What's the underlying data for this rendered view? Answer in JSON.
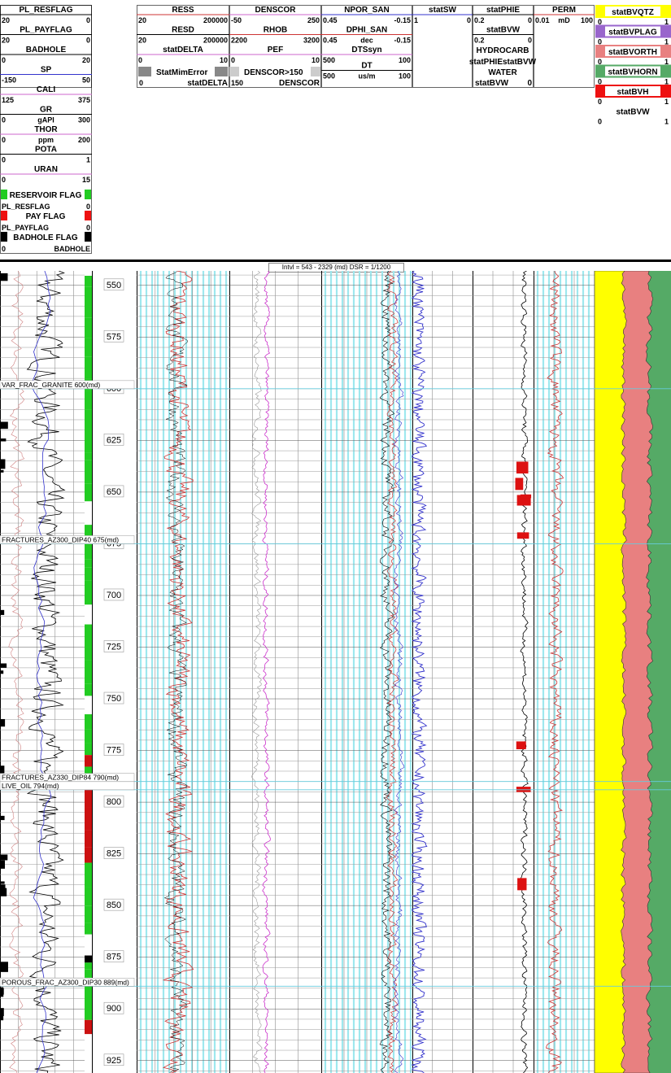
{
  "interval_label": "Intvl = 543 - 2329 (md) DSR = 1/1200",
  "header": {
    "left": [
      {
        "name": "PL_RESFLAG",
        "min": "20",
        "max": "0",
        "color": "#000"
      },
      {
        "name": "PL_PAYFLAG",
        "min": "20",
        "max": "0",
        "color": "#000"
      },
      {
        "name": "BADHOLE",
        "min": "0",
        "max": "20",
        "color": "#000"
      },
      {
        "name": "SP",
        "min": "-150",
        "max": "50",
        "color": "#3333cc"
      },
      {
        "name": "CALI",
        "min": "125",
        "max": "375",
        "color": "#cc66cc"
      },
      {
        "name": "GR",
        "unit": "gAPI",
        "min": "0",
        "max": "300",
        "color": "#000"
      },
      {
        "name": "THOR",
        "unit": "ppm",
        "min": "0",
        "max": "200",
        "color": "#cc66cc"
      },
      {
        "name": "POTA",
        "min": "0",
        "max": "1",
        "color": "#000"
      },
      {
        "name": "URAN",
        "min": "0",
        "max": "15",
        "color": "#cc66cc"
      }
    ],
    "flags": [
      {
        "title": "RESERVOIR FLAG",
        "name": "PL_RESFLAG",
        "max": "0",
        "color": "#22cc22"
      },
      {
        "title": "PAY FLAG",
        "name": "PL_PAYFLAG",
        "max": "0",
        "color": "#ee1111"
      },
      {
        "title": "BADHOLE FLAG",
        "name": "BADHOLE",
        "min": "0",
        "color": "#000"
      }
    ],
    "ress_col": [
      {
        "name": "RESS",
        "min": "20",
        "max": "200000",
        "color": "#cc3333"
      },
      {
        "name": "RESD",
        "min": "20",
        "max": "200000",
        "color": "#000"
      },
      {
        "name": "statDELTA",
        "min": "0",
        "max": "10",
        "color": "#cc66cc"
      }
    ],
    "dens_col": [
      {
        "name": "DENSCOR",
        "min": "-50",
        "max": "250",
        "color": "#cc66cc"
      },
      {
        "name": "RHOB",
        "min": "2200",
        "max": "3200",
        "color": "#cc3333"
      },
      {
        "name": "PEF",
        "min": "0",
        "max": "10",
        "color": "#cc66cc"
      }
    ],
    "npor_col": [
      {
        "name": "NPOR_SAN",
        "min": "0.45",
        "max": "-0.15",
        "color": "#3333cc"
      },
      {
        "name": "DPHI_SAN",
        "unit": "dec",
        "min": "0.45",
        "max": "-0.15",
        "color": "#cc3333"
      },
      {
        "name": "DTSsyn",
        "min": "500",
        "max": "100",
        "color": "#cc66cc"
      },
      {
        "name": "DT",
        "unit": "us/m",
        "min": "500",
        "max": "100",
        "color": "#000"
      }
    ],
    "shade_legend": {
      "a": "StatMimError",
      "b": "DENSCOR>150",
      "c": "statDELTA",
      "d": "DENSCOR",
      "min_a": "0",
      "min_b": "150"
    },
    "sw_col": {
      "name": "statSW",
      "min": "1",
      "max": "0",
      "color": "#3333cc"
    },
    "phie_col": [
      {
        "name": "statPHIE",
        "min": "0.2",
        "max": "0",
        "color": "#000"
      },
      {
        "name": "statBVW",
        "min": "0.2",
        "max": "0",
        "color": "#000"
      }
    ],
    "phie_extra": {
      "hydro": "HYDROCARB",
      "hydro_sub": "statPHIEstatBVW",
      "water": "WATER",
      "water_sub": "statBVW",
      "water_val": "0"
    },
    "perm_col": {
      "name": "PERM",
      "min": "0.01",
      "unit": "mD",
      "max": "100",
      "color": "#cc3333"
    },
    "mineral": [
      {
        "name": "statBVQTZ",
        "min": "0",
        "max": "1",
        "color": "#ffff00"
      },
      {
        "name": "statBVPLAG",
        "min": "0",
        "max": "1",
        "color": "#9966cc"
      },
      {
        "name": "statBVORTH",
        "min": "0",
        "max": "1",
        "color": "#e88080"
      },
      {
        "name": "statBVHORN",
        "min": "0",
        "max": "1",
        "color": "#55aa66"
      },
      {
        "name": "statBVH",
        "min": "0",
        "max": "1",
        "color": "#ee1111"
      },
      {
        "name": "statBVW",
        "min": "0",
        "max": "1",
        "color": "#ffffff"
      }
    ]
  },
  "chart_data": {
    "type": "line",
    "depth_unit": "md",
    "depth_range": [
      543,
      931
    ],
    "depth_ticks": [
      550,
      575,
      600,
      625,
      650,
      675,
      700,
      725,
      750,
      775,
      800,
      825,
      850,
      875,
      900,
      925
    ],
    "markers": [
      {
        "depth": 600,
        "label": "VAR_FRAC_GRANITE 600(md)"
      },
      {
        "depth": 675,
        "label": "FRACTURES_AZ300_DIP40 675(md)"
      },
      {
        "depth": 790,
        "label": "FRACTURES_AZ330_DIP84 790(md)"
      },
      {
        "depth": 794,
        "label": "LIVE_OIL 794(md)"
      },
      {
        "depth": 889,
        "label": "POROUS_FRAC_AZ300_DIP30 889(md)"
      }
    ],
    "mineral_colors": {
      "qtz": "#ffff00",
      "orth": "#e88080",
      "horn": "#55aa66"
    }
  }
}
